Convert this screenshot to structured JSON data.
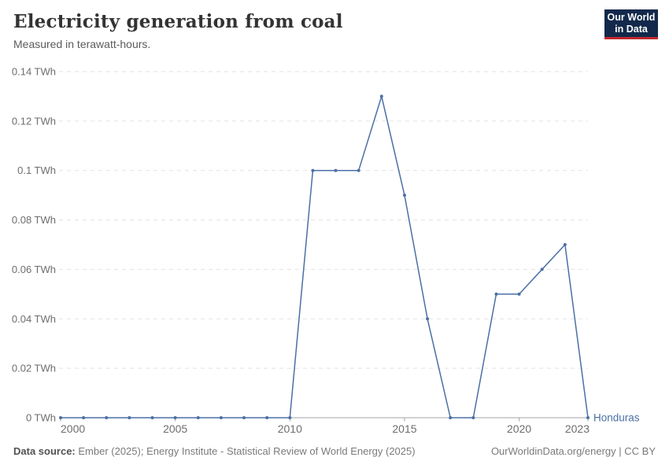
{
  "header": {
    "title": "Electricity generation from coal",
    "subtitle": "Measured in terawatt-hours."
  },
  "logo": {
    "line1": "Our World",
    "line2": "in Data"
  },
  "footer": {
    "source_label": "Data source:",
    "source_text": " Ember (2025); Energy Institute - Statistical Review of World Energy (2025)",
    "link_text": "OurWorldinData.org/energy | CC BY"
  },
  "colors": {
    "line": "#4C6FA5",
    "entity_label": "#4C6FA5",
    "grid": "#e2e2e2",
    "axis": "#a3a3a3",
    "tick_text": "#6e6e6e",
    "logo_bg": "#12294B",
    "logo_accent": "#C0272D"
  },
  "chart_data": {
    "type": "line",
    "title": "Electricity generation from coal",
    "subtitle": "Measured in terawatt-hours.",
    "unit": "TWh",
    "x": [
      2000,
      2001,
      2002,
      2003,
      2004,
      2005,
      2006,
      2007,
      2008,
      2009,
      2010,
      2011,
      2012,
      2013,
      2014,
      2015,
      2016,
      2017,
      2018,
      2019,
      2020,
      2021,
      2022,
      2023
    ],
    "series": [
      {
        "name": "Honduras",
        "values": [
          0,
          0,
          0,
          0,
          0,
          0,
          0,
          0,
          0,
          0,
          0,
          0.1,
          0.1,
          0.1,
          0.13,
          0.09,
          0.04,
          0,
          0,
          0.05,
          0.05,
          0.06,
          0.07,
          0
        ]
      }
    ],
    "xlim": [
      2000,
      2023
    ],
    "ylim": [
      0,
      0.14
    ],
    "y_ticks": [
      0,
      0.02,
      0.04,
      0.06,
      0.08,
      0.1,
      0.12,
      0.14
    ],
    "y_tick_labels": [
      "0 TWh",
      "0.02 TWh",
      "0.04 TWh",
      "0.06 TWh",
      "0.08 TWh",
      "0.1 TWh",
      "0.12 TWh",
      "0.14 TWh"
    ],
    "x_ticks": [
      2000,
      2005,
      2010,
      2015,
      2020,
      2023
    ],
    "x_tick_labels": [
      "2000",
      "2005",
      "2010",
      "2015",
      "2020",
      "2023"
    ],
    "grid": "horizontal-dashed",
    "legend_position": "end-of-line-label",
    "markers": true
  }
}
